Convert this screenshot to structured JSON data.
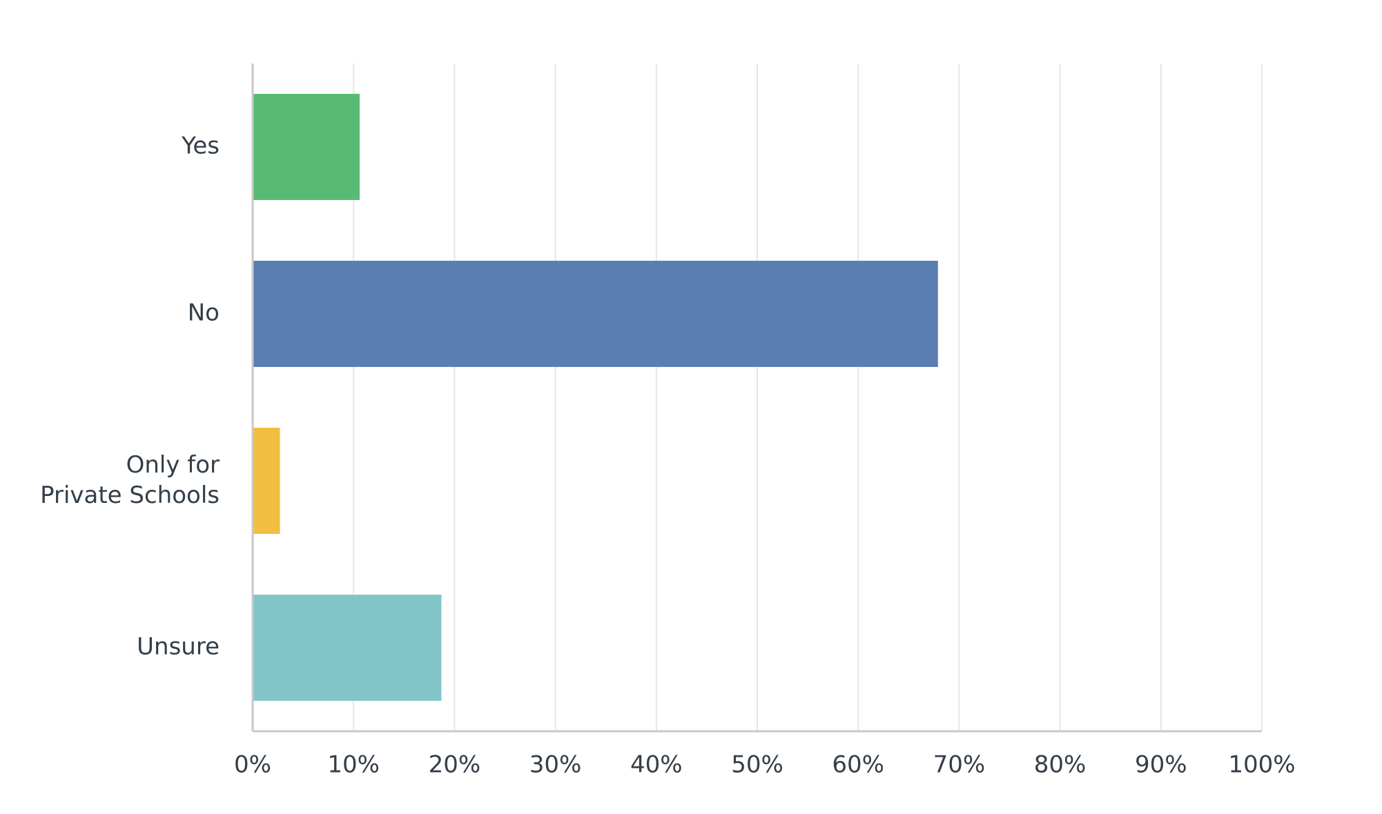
{
  "chart_data": {
    "type": "hbar",
    "categories": [
      "Yes",
      "No",
      "Only for\nPrivate Schools",
      "Unsure"
    ],
    "values": [
      10.5,
      67.8,
      2.6,
      18.6
    ],
    "colors": [
      "#57bb75",
      "#5a7db2",
      "#f1be41",
      "#82c5c9"
    ],
    "xlim": [
      0,
      100
    ],
    "xticks": [
      {
        "value": 0,
        "label": "0%"
      },
      {
        "value": 10,
        "label": "10%"
      },
      {
        "value": 20,
        "label": "20%"
      },
      {
        "value": 30,
        "label": "30%"
      },
      {
        "value": 40,
        "label": "40%"
      },
      {
        "value": 50,
        "label": "50%"
      },
      {
        "value": 60,
        "label": "60%"
      },
      {
        "value": 70,
        "label": "70%"
      },
      {
        "value": 80,
        "label": "80%"
      },
      {
        "value": 90,
        "label": "90%"
      },
      {
        "value": 100,
        "label": "100%"
      }
    ],
    "grid": true
  }
}
